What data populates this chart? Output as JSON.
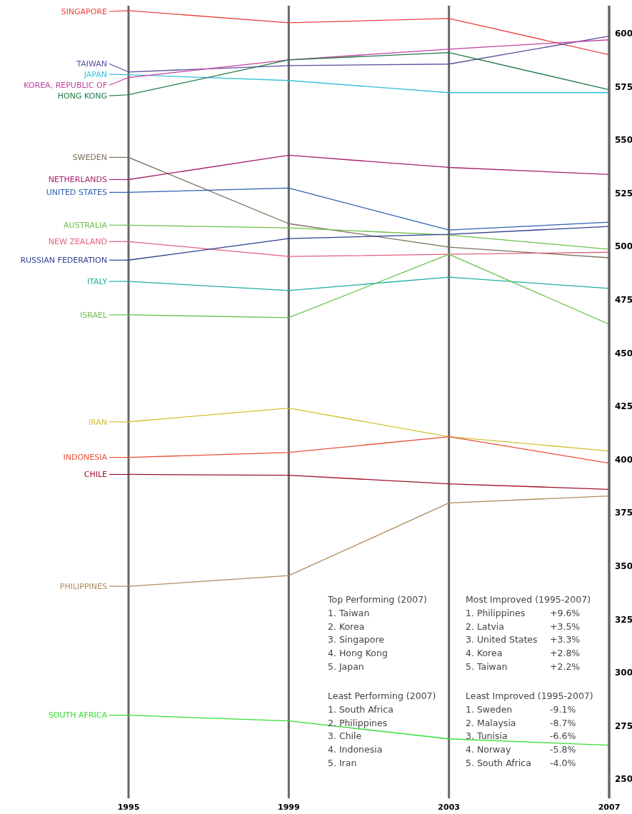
{
  "chart_data": {
    "type": "line",
    "x": [
      1995,
      1999,
      2003,
      2007
    ],
    "xlim": [
      1995,
      2007
    ],
    "xticks": [
      1995,
      1999,
      2003,
      2007
    ],
    "ylim": [
      241,
      613
    ],
    "yticks": [
      250,
      275,
      300,
      325,
      350,
      375,
      400,
      425,
      450,
      475,
      500,
      525,
      550,
      575,
      600
    ],
    "grid": "x",
    "legend": "left",
    "marker": "none",
    "line_style": "solid",
    "series": [
      {
        "name": "SINGAPORE",
        "color": "#e8413f",
        "values": [
          610.7,
          605.0,
          607.0,
          590.0
        ]
      },
      {
        "name": "TAIWAN",
        "color": "#5b4ea0",
        "values": [
          581.9,
          584.9,
          585.6,
          598.7
        ]
      },
      {
        "name": "JAPAN",
        "color": "#36c0d8",
        "values": [
          580.6,
          577.9,
          572.2,
          572.2
        ]
      },
      {
        "name": "KOREA, REPUBLIC OF",
        "color": "#c040a0",
        "values": [
          579.3,
          587.6,
          592.6,
          597.0
        ]
      },
      {
        "name": "HONG KONG",
        "color": "#1e7a45",
        "values": [
          571.2,
          587.6,
          591.0,
          573.6
        ]
      },
      {
        "name": "SWEDEN",
        "color": "#7d6e5a",
        "values": [
          541.8,
          510.7,
          499.7,
          494.7
        ]
      },
      {
        "name": "NETHERLANDS",
        "color": "#a8206a",
        "values": [
          531.4,
          542.8,
          537.1,
          533.8
        ]
      },
      {
        "name": "UNITED STATES",
        "color": "#2d5fb0",
        "values": [
          525.4,
          527.4,
          507.7,
          511.4
        ]
      },
      {
        "name": "AUSTRALIA",
        "color": "#6cbf4a",
        "values": [
          510.0,
          508.7,
          505.4,
          498.7
        ]
      },
      {
        "name": "NEW ZEALAND",
        "color": "#e0607a",
        "values": [
          502.3,
          495.3,
          496.3,
          497.3
        ]
      },
      {
        "name": "RUSSIAN FEDERATION",
        "color": "#2f3f8f",
        "values": [
          493.6,
          503.7,
          505.7,
          509.4
        ]
      },
      {
        "name": "ITALY",
        "color": "#20b0a0",
        "values": [
          483.6,
          479.3,
          485.6,
          480.3
        ]
      },
      {
        "name": "ISRAEL",
        "color": "#6cc050",
        "values": [
          467.9,
          466.6,
          496.3,
          463.5
        ]
      },
      {
        "name": "IRAN",
        "color": "#d4c030",
        "values": [
          417.7,
          424.1,
          410.7,
          404.0
        ]
      },
      {
        "name": "INDONESIA",
        "color": "#e8503a",
        "values": [
          401.0,
          403.3,
          410.7,
          398.3
        ]
      },
      {
        "name": "CHILE",
        "color": "#a0102a",
        "values": [
          393.0,
          392.6,
          388.6,
          386.0
        ]
      },
      {
        "name": "PHILIPPINES",
        "color": "#b08a60",
        "values": [
          340.5,
          345.5,
          379.6,
          382.9
        ]
      },
      {
        "name": "SOUTH AFRICA",
        "color": "#33e033",
        "values": [
          280.0,
          277.3,
          268.9,
          265.9
        ]
      }
    ],
    "annotations": [
      "Top Performing (2007)",
      "1. Taiwan",
      "2. Korea",
      "3. Singapore",
      "4. Hong Kong",
      "5. Japan",
      "Most Improved (1995-2007)",
      "1. Philippines\t+9.6%",
      "2. Latvia\t+3.5%",
      "3. United States\t+3.3%",
      "4. Korea\t+2.8%",
      "5. Taiwan\t+2.2%",
      "Least Performing (2007)",
      "1. South Africa",
      "2. Philippines",
      "3. Chile",
      "4. Indonesia",
      "5. Iran",
      "Least Improved (1995-2007)",
      "1. Sweden\t-9.1%",
      "2. Malaysia\t-8.7%",
      "3. Tunisia\t-6.6%",
      "4. Norway\t-5.8%",
      "5. South Africa\t-4.0%"
    ]
  }
}
